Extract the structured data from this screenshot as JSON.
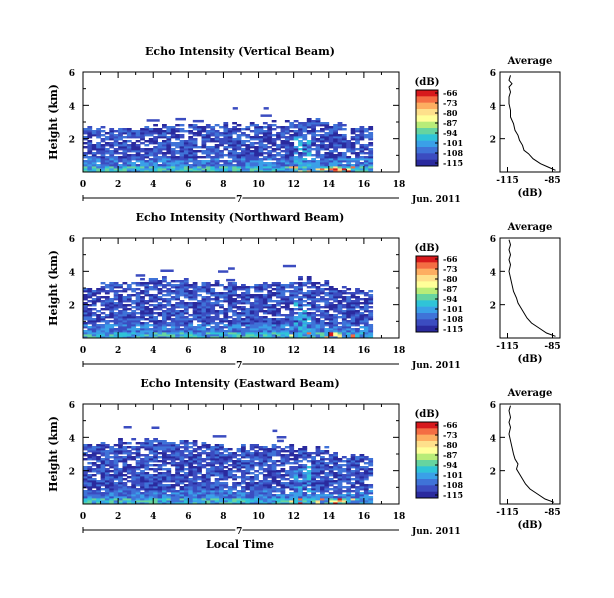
{
  "figure": {
    "time_axis_label": "Local Time",
    "date_label": "Jun. 2011",
    "day_marker": "7"
  },
  "chart_data": [
    {
      "type": "heatmap",
      "title": "Echo Intensity (Vertical Beam)",
      "ylabel": "Height (km)",
      "xlabel": "",
      "xlim": [
        0,
        18
      ],
      "ylim": [
        0,
        6
      ],
      "xticks": [
        "0",
        "2",
        "4",
        "6",
        "8",
        "10",
        "12",
        "14",
        "16",
        "18"
      ],
      "yticks": [
        "2",
        "4",
        "6"
      ],
      "data_end_hour": 16.5,
      "cloud_top_km": [
        2.6,
        2.6,
        2.65,
        2.7,
        2.7,
        2.75,
        2.8,
        2.8,
        2.85,
        2.9,
        2.95,
        3.0,
        3.05,
        3.05,
        2.8,
        2.6,
        2.6,
        2.6,
        2.6
      ],
      "colorbar": {
        "unit_label": "(dB)",
        "ticks": [
          "-66",
          "-73",
          "-80",
          "-87",
          "-94",
          "-101",
          "-108",
          "-115"
        ],
        "colors": [
          "#d7191c",
          "#f46d43",
          "#fdae61",
          "#fee08b",
          "#ffff99",
          "#b8ec78",
          "#66d4a0",
          "#2fc4d8",
          "#3aa0e8",
          "#3f73d8",
          "#3b4cc0",
          "#2a2a9e"
        ]
      },
      "average_profile": {
        "title": "Average",
        "xlabel": "(dB)",
        "xticks": [
          "-115",
          "-85"
        ],
        "yticks": [
          "2",
          "4",
          "6"
        ],
        "xlim": [
          -120,
          -80
        ],
        "ylim": [
          0,
          6
        ],
        "points": [
          [
            -83,
            0.1
          ],
          [
            -88,
            0.3
          ],
          [
            -93,
            0.5
          ],
          [
            -98,
            0.8
          ],
          [
            -101,
            1.1
          ],
          [
            -104,
            1.3
          ],
          [
            -105,
            1.6
          ],
          [
            -107,
            1.9
          ],
          [
            -108,
            2.2
          ],
          [
            -110,
            2.5
          ],
          [
            -111,
            2.9
          ],
          [
            -113,
            3.3
          ],
          [
            -113,
            3.7
          ],
          [
            -114,
            4.1
          ],
          [
            -114,
            4.5
          ],
          [
            -113,
            4.8
          ],
          [
            -114,
            5.1
          ],
          [
            -112,
            5.3
          ],
          [
            -114,
            5.5
          ],
          [
            -113,
            5.8
          ]
        ]
      }
    },
    {
      "type": "heatmap",
      "title": "Echo Intensity (Northward Beam)",
      "ylabel": "Height (km)",
      "xlabel": "",
      "xlim": [
        0,
        18
      ],
      "ylim": [
        0,
        6
      ],
      "xticks": [
        "0",
        "2",
        "4",
        "6",
        "8",
        "10",
        "12",
        "14",
        "16",
        "18"
      ],
      "yticks": [
        "2",
        "4",
        "6"
      ],
      "data_end_hour": 16.5,
      "cloud_top_km": [
        3.0,
        3.2,
        3.3,
        3.4,
        3.5,
        3.4,
        3.3,
        3.3,
        3.2,
        3.2,
        3.2,
        3.3,
        3.6,
        3.3,
        3.0,
        2.8,
        2.7,
        2.8,
        2.8
      ],
      "colorbar": {
        "unit_label": "(dB)",
        "ticks": [
          "-66",
          "-73",
          "-80",
          "-87",
          "-94",
          "-101",
          "-108",
          "-115"
        ],
        "colors": [
          "#d7191c",
          "#f46d43",
          "#fdae61",
          "#fee08b",
          "#ffff99",
          "#b8ec78",
          "#66d4a0",
          "#2fc4d8",
          "#3aa0e8",
          "#3f73d8",
          "#3b4cc0",
          "#2a2a9e"
        ]
      },
      "average_profile": {
        "title": "Average",
        "xlabel": "(dB)",
        "xticks": [
          "-115",
          "-85"
        ],
        "yticks": [
          "2",
          "4",
          "6"
        ],
        "xlim": [
          -120,
          -80
        ],
        "ylim": [
          0,
          6
        ],
        "points": [
          [
            -83,
            0.1
          ],
          [
            -89,
            0.3
          ],
          [
            -94,
            0.6
          ],
          [
            -99,
            0.9
          ],
          [
            -102,
            1.2
          ],
          [
            -104,
            1.5
          ],
          [
            -106,
            1.8
          ],
          [
            -108,
            2.1
          ],
          [
            -109,
            2.4
          ],
          [
            -111,
            2.8
          ],
          [
            -112,
            3.2
          ],
          [
            -113,
            3.6
          ],
          [
            -114,
            4.0
          ],
          [
            -113,
            4.4
          ],
          [
            -114,
            4.7
          ],
          [
            -113,
            5.0
          ],
          [
            -114,
            5.3
          ],
          [
            -113,
            5.6
          ],
          [
            -114,
            5.9
          ]
        ]
      }
    },
    {
      "type": "heatmap",
      "title": "Echo Intensity (Eastward Beam)",
      "ylabel": "Height (km)",
      "xlabel": "Local Time",
      "xlim": [
        0,
        18
      ],
      "ylim": [
        0,
        6
      ],
      "xticks": [
        "0",
        "2",
        "4",
        "6",
        "8",
        "10",
        "12",
        "14",
        "16",
        "18"
      ],
      "yticks": [
        "2",
        "4",
        "6"
      ],
      "data_end_hour": 16.5,
      "cloud_top_km": [
        3.6,
        3.7,
        3.8,
        3.8,
        3.8,
        3.7,
        3.6,
        3.5,
        3.4,
        3.4,
        3.4,
        3.5,
        3.4,
        3.3,
        3.0,
        2.9,
        2.8,
        2.8,
        2.8
      ],
      "colorbar": {
        "unit_label": "(dB)",
        "ticks": [
          "-66",
          "-73",
          "-80",
          "-87",
          "-94",
          "-101",
          "-108",
          "-115"
        ],
        "colors": [
          "#d7191c",
          "#f46d43",
          "#fdae61",
          "#fee08b",
          "#ffff99",
          "#b8ec78",
          "#66d4a0",
          "#2fc4d8",
          "#3aa0e8",
          "#3f73d8",
          "#3b4cc0",
          "#2a2a9e"
        ]
      },
      "average_profile": {
        "title": "Average",
        "xlabel": "(dB)",
        "xticks": [
          "-115",
          "-85"
        ],
        "yticks": [
          "2",
          "4",
          "6"
        ],
        "xlim": [
          -120,
          -80
        ],
        "ylim": [
          0,
          6
        ],
        "points": [
          [
            -84,
            0.1
          ],
          [
            -90,
            0.3
          ],
          [
            -95,
            0.6
          ],
          [
            -100,
            0.9
          ],
          [
            -103,
            1.2
          ],
          [
            -105,
            1.5
          ],
          [
            -107,
            1.8
          ],
          [
            -109,
            2.1
          ],
          [
            -108,
            2.4
          ],
          [
            -110,
            2.7
          ],
          [
            -111,
            3.0
          ],
          [
            -112,
            3.4
          ],
          [
            -113,
            3.8
          ],
          [
            -114,
            4.2
          ],
          [
            -113,
            4.6
          ],
          [
            -114,
            4.9
          ],
          [
            -113,
            5.2
          ],
          [
            -114,
            5.6
          ],
          [
            -113,
            5.9
          ]
        ]
      }
    }
  ]
}
